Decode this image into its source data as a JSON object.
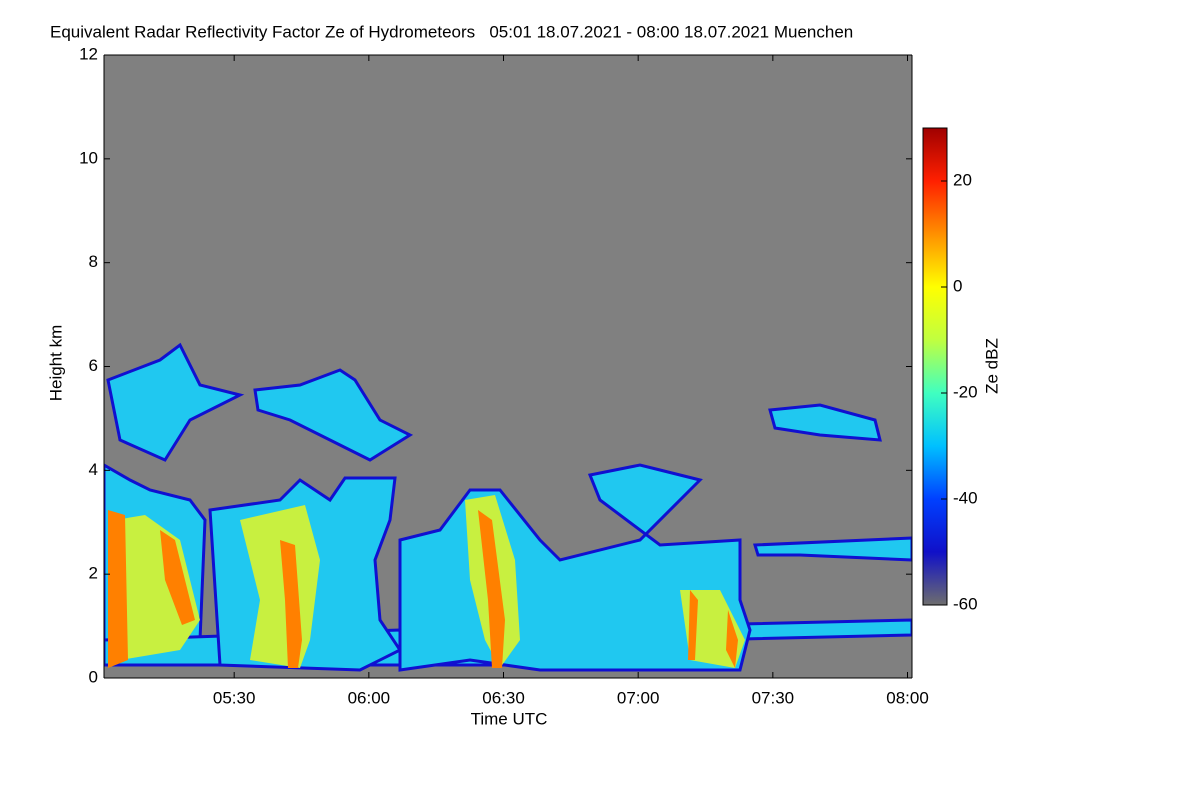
{
  "chart_data": {
    "type": "heatmap",
    "title": "Equivalent Radar Reflectivity Factor Ze of Hydrometeors   05:01 18.07.2021 - 08:00 18.07.2021 Muenchen",
    "x_label": "Time UTC",
    "y_label": "Height km",
    "colorbar_label": "Ze dBZ",
    "xlim": [
      1,
      181
    ],
    "xticks": [
      {
        "value": 30,
        "label": "05:30"
      },
      {
        "value": 60,
        "label": "06:00"
      },
      {
        "value": 90,
        "label": "06:30"
      },
      {
        "value": 120,
        "label": "07:00"
      },
      {
        "value": 150,
        "label": "07:30"
      },
      {
        "value": 180,
        "label": "08:00"
      }
    ],
    "ylim": [
      0,
      12
    ],
    "yticks": [
      0,
      2,
      4,
      6,
      8,
      10,
      12
    ],
    "clim": [
      -60,
      30
    ],
    "cticks": [
      -60,
      -40,
      -20,
      0,
      20
    ],
    "colormap": [
      "#6e6e6e",
      "#1010c8",
      "#0040ff",
      "#00c0ff",
      "#40ffc0",
      "#c0ff40",
      "#ffff00",
      "#ff9000",
      "#ff2000",
      "#a00000"
    ],
    "background": "#808080"
  }
}
